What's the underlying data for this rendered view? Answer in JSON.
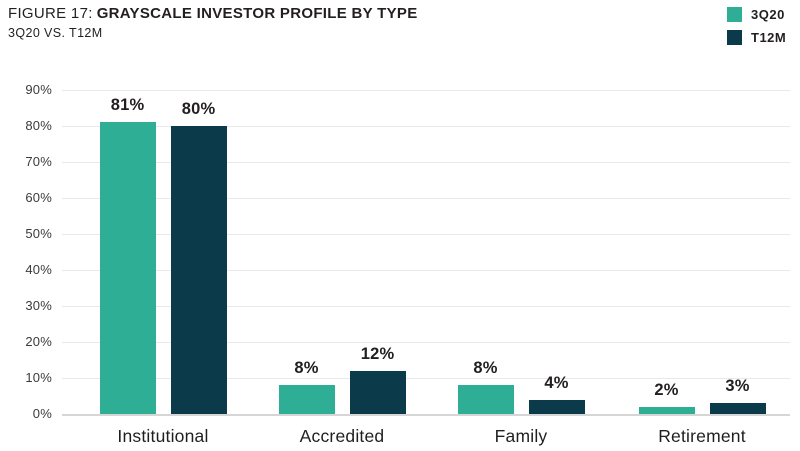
{
  "header": {
    "figure_label": "FIGURE 17:",
    "title": "GRAYSCALE INVESTOR PROFILE BY TYPE",
    "subtitle": "3Q20 VS. T12M"
  },
  "legend": {
    "items": [
      {
        "label": "3Q20",
        "color": "#2FAE96"
      },
      {
        "label": "T12M",
        "color": "#0B3A4A"
      }
    ]
  },
  "chart_data": {
    "type": "bar",
    "title": "FIGURE 17: GRAYSCALE INVESTOR PROFILE BY TYPE",
    "subtitle": "3Q20 VS. T12M",
    "categories": [
      "Institutional",
      "Accredited",
      "Family",
      "Retirement"
    ],
    "series": [
      {
        "name": "3Q20",
        "color": "#2FAE96",
        "values": [
          81,
          8,
          8,
          2
        ]
      },
      {
        "name": "T12M",
        "color": "#0B3A4A",
        "values": [
          80,
          12,
          4,
          3
        ]
      }
    ],
    "value_labels": [
      [
        "81%",
        "8%",
        "8%",
        "2%"
      ],
      [
        "80%",
        "12%",
        "4%",
        "3%"
      ]
    ],
    "xlabel": "",
    "ylabel": "",
    "ylim": [
      0,
      90
    ],
    "ytick_step": 10,
    "ytick_labels": [
      "0%",
      "10%",
      "20%",
      "30%",
      "40%",
      "50%",
      "60%",
      "70%",
      "80%",
      "90%"
    ],
    "grid": true,
    "legend_position": "top-right",
    "colors": {
      "grid": "#E9E9E9",
      "baseline": "#D6D6D6",
      "text": "#231F20",
      "axis_text": "#3B3B3B"
    }
  }
}
